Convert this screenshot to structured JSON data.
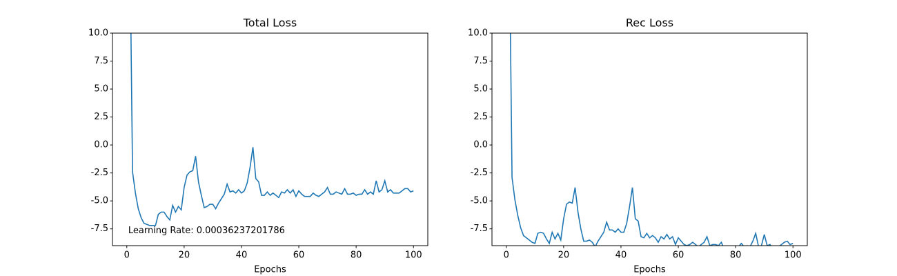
{
  "chart_data": [
    {
      "type": "line",
      "title": "Total Loss",
      "x_label": "Epochs",
      "color": "#1f77b4",
      "annotation": "Learning Rate: 0.00036237201786",
      "xlim": [
        -5,
        105
      ],
      "ylim": [
        -9,
        10
      ],
      "xticks": [
        0,
        20,
        40,
        60,
        80,
        100
      ],
      "yticks": [
        {
          "value": 10,
          "label": "10.0"
        },
        7.5,
        {
          "value": 5,
          "label": "5.0"
        },
        2.5,
        {
          "value": 0,
          "label": "0.0"
        },
        -2.5,
        {
          "value": -5,
          "label": "-5.0"
        },
        -7.5
      ],
      "x": [
        1,
        2,
        3,
        4,
        5,
        6,
        7,
        8,
        9,
        10,
        11,
        12,
        13,
        14,
        15,
        16,
        17,
        18,
        19,
        20,
        21,
        22,
        23,
        24,
        25,
        26,
        27,
        28,
        29,
        30,
        31,
        32,
        33,
        34,
        35,
        36,
        37,
        38,
        39,
        40,
        41,
        42,
        43,
        44,
        45,
        46,
        47,
        48,
        49,
        50,
        51,
        52,
        53,
        54,
        55,
        56,
        57,
        58,
        59,
        60,
        61,
        62,
        63,
        64,
        65,
        66,
        67,
        68,
        69,
        70,
        71,
        72,
        73,
        74,
        75,
        76,
        77,
        78,
        79,
        80,
        81,
        82,
        83,
        84,
        85,
        86,
        87,
        88,
        89,
        90,
        91,
        92,
        93,
        94,
        95,
        96,
        97,
        98,
        99,
        100
      ],
      "values": [
        20,
        -2.4,
        -4.3,
        -5.7,
        -6.5,
        -7.0,
        -7.1,
        -7.2,
        -7.2,
        -7.2,
        -6.2,
        -6.0,
        -6.0,
        -6.4,
        -6.7,
        -5.4,
        -6.0,
        -5.5,
        -5.8,
        -3.8,
        -2.7,
        -2.4,
        -2.3,
        -1.0,
        -3.3,
        -4.5,
        -5.6,
        -5.5,
        -5.3,
        -5.3,
        -5.7,
        -5.2,
        -4.8,
        -4.4,
        -3.5,
        -4.2,
        -4.1,
        -4.3,
        -4.0,
        -4.3,
        -4.1,
        -3.4,
        -2.0,
        -0.2,
        -3.0,
        -3.3,
        -4.5,
        -4.5,
        -4.2,
        -4.5,
        -4.3,
        -4.5,
        -4.7,
        -4.2,
        -4.3,
        -4.0,
        -4.3,
        -4.0,
        -4.6,
        -4.1,
        -4.4,
        -4.6,
        -4.6,
        -4.6,
        -4.3,
        -4.5,
        -4.6,
        -4.4,
        -4.2,
        -3.8,
        -4.4,
        -4.4,
        -4.2,
        -4.3,
        -4.4,
        -3.9,
        -4.4,
        -4.4,
        -4.3,
        -4.5,
        -4.4,
        -4.4,
        -4.0,
        -4.4,
        -4.2,
        -4.4,
        -3.2,
        -4.2,
        -4.0,
        -3.2,
        -4.2,
        -4.0,
        -4.3,
        -4.3,
        -4.3,
        -4.1,
        -3.9,
        -3.9,
        -4.2,
        -4.1
      ]
    },
    {
      "type": "line",
      "title": "Rec Loss",
      "x_label": "Epochs",
      "color": "#1f77b4",
      "xlim": [
        -5,
        105
      ],
      "ylim": [
        -9,
        10
      ],
      "xticks": [
        0,
        20,
        40,
        60,
        80,
        100
      ],
      "yticks": [
        {
          "value": 10,
          "label": "10.0"
        },
        7.5,
        {
          "value": 5,
          "label": "5.0"
        },
        2.5,
        {
          "value": 0,
          "label": "0.0"
        },
        -2.5,
        {
          "value": -5,
          "label": "-5.0"
        },
        -7.5
      ],
      "x": [
        1,
        2,
        3,
        4,
        5,
        6,
        7,
        8,
        9,
        10,
        11,
        12,
        13,
        14,
        15,
        16,
        17,
        18,
        19,
        20,
        21,
        22,
        23,
        24,
        25,
        26,
        27,
        28,
        29,
        30,
        31,
        32,
        33,
        34,
        35,
        36,
        37,
        38,
        39,
        40,
        41,
        42,
        43,
        44,
        45,
        46,
        47,
        48,
        49,
        50,
        51,
        52,
        53,
        54,
        55,
        56,
        57,
        58,
        59,
        60,
        61,
        62,
        63,
        64,
        65,
        66,
        67,
        68,
        69,
        70,
        71,
        72,
        73,
        74,
        75,
        76,
        77,
        78,
        79,
        80,
        81,
        82,
        83,
        84,
        85,
        86,
        87,
        88,
        89,
        90,
        91,
        92,
        93,
        94,
        95,
        96,
        97,
        98,
        99,
        100
      ],
      "values": [
        20,
        -2.9,
        -4.9,
        -6.3,
        -7.4,
        -8.1,
        -8.3,
        -8.5,
        -8.7,
        -8.8,
        -7.9,
        -7.8,
        -7.9,
        -8.4,
        -8.8,
        -7.8,
        -8.4,
        -7.9,
        -8.5,
        -6.6,
        -5.3,
        -5.1,
        -5.2,
        -3.8,
        -6.0,
        -7.5,
        -8.6,
        -8.6,
        -8.5,
        -8.7,
        -9.1,
        -8.6,
        -8.2,
        -7.8,
        -6.9,
        -7.6,
        -7.6,
        -7.8,
        -7.5,
        -7.8,
        -7.8,
        -7.0,
        -5.5,
        -3.8,
        -6.6,
        -6.8,
        -8.2,
        -8.3,
        -7.9,
        -8.3,
        -8.1,
        -8.3,
        -8.7,
        -8.2,
        -8.4,
        -8.0,
        -8.4,
        -8.2,
        -8.9,
        -8.3,
        -8.6,
        -8.9,
        -9.0,
        -8.9,
        -8.7,
        -8.9,
        -9.1,
        -8.9,
        -8.7,
        -8.2,
        -9.0,
        -8.9,
        -8.9,
        -9.0,
        -8.7,
        -9.3,
        -9.2,
        -9.1,
        -9.2,
        -9.3,
        -9.1,
        -8.8,
        -9.1,
        -9.0,
        -9.1,
        -8.6,
        -7.9,
        -9.1,
        -9.0,
        -8.0,
        -9.0,
        -8.9,
        -9.3,
        -9.2,
        -9.1,
        -8.9,
        -8.7,
        -8.6,
        -8.9,
        -8.8
      ]
    }
  ]
}
